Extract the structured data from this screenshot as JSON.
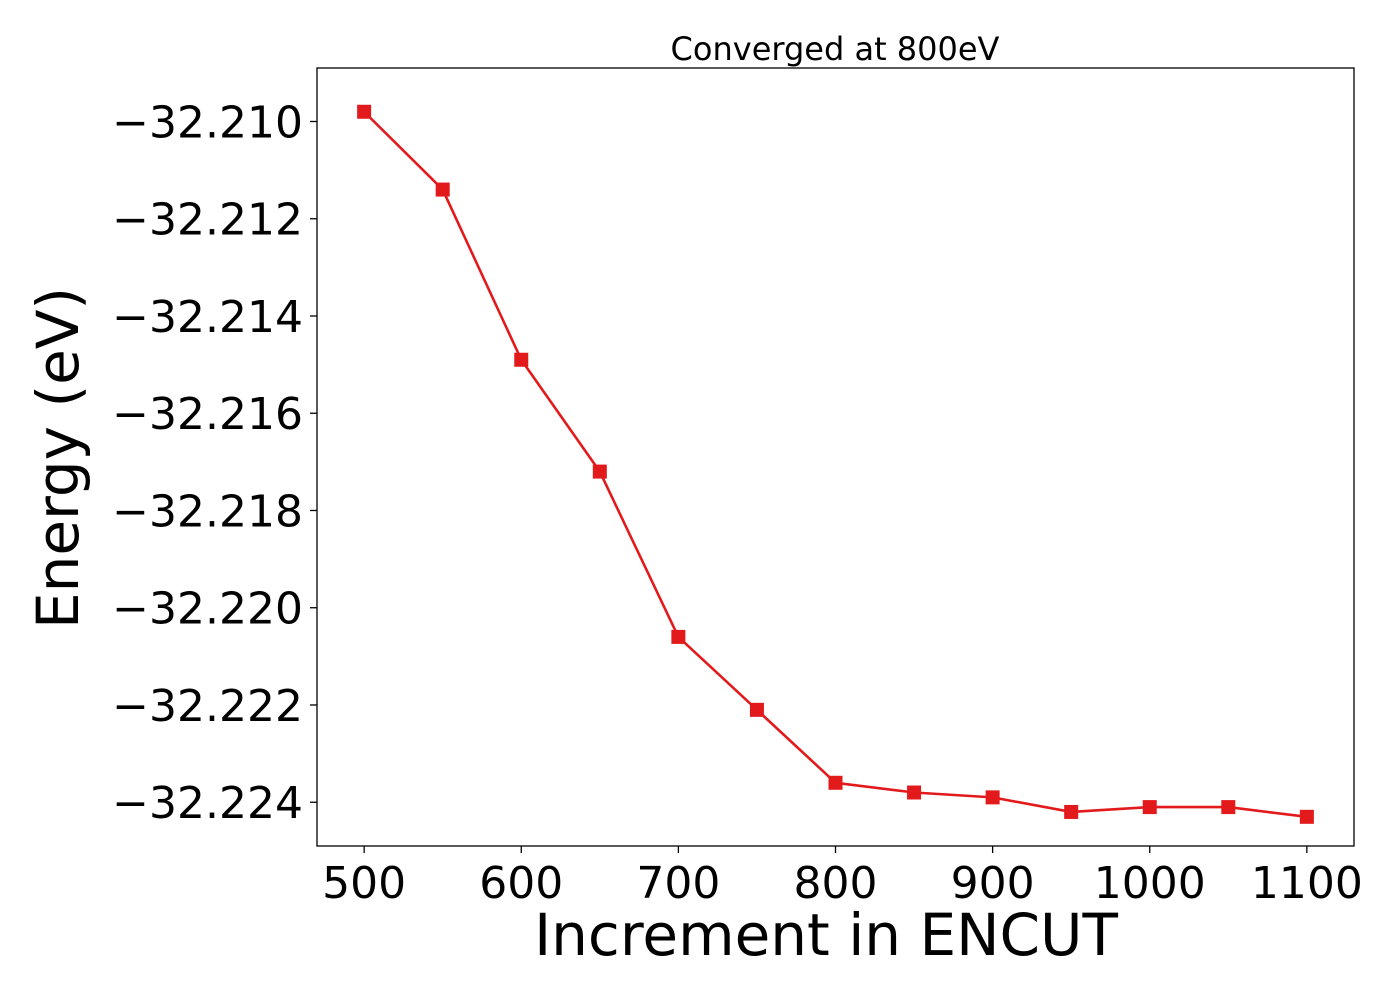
{
  "chart_data": {
    "type": "line",
    "title": "Converged at 800eV",
    "xlabel": "Increment in ENCUT",
    "ylabel": "Energy (eV)",
    "x": [
      500,
      550,
      600,
      650,
      700,
      750,
      800,
      850,
      900,
      950,
      1000,
      1050,
      1100
    ],
    "series": [
      {
        "values": [
          -32.2098,
          -32.2114,
          -32.2149,
          -32.2172,
          -32.2206,
          -32.2221,
          -32.2236,
          -32.2238,
          -32.2239,
          -32.2242,
          -32.2241,
          -32.2241,
          -32.2243
        ],
        "color": "#e31a1c",
        "marker": "square"
      }
    ],
    "xlim": [
      470,
      1130
    ],
    "ylim": [
      -32.2249,
      -32.2089
    ],
    "xticks": [
      500,
      600,
      700,
      800,
      900,
      1000,
      1100
    ],
    "xtick_labels": [
      "500",
      "600",
      "700",
      "800",
      "900",
      "1000",
      "1100"
    ],
    "yticks": [
      -32.21,
      -32.212,
      -32.214,
      -32.216,
      -32.218,
      -32.22,
      -32.222,
      -32.224
    ],
    "ytick_labels": [
      "−32.210",
      "−32.212",
      "−32.214",
      "−32.216",
      "−32.218",
      "−32.220",
      "−32.222",
      "−32.224"
    ],
    "grid": false,
    "legend": false
  }
}
